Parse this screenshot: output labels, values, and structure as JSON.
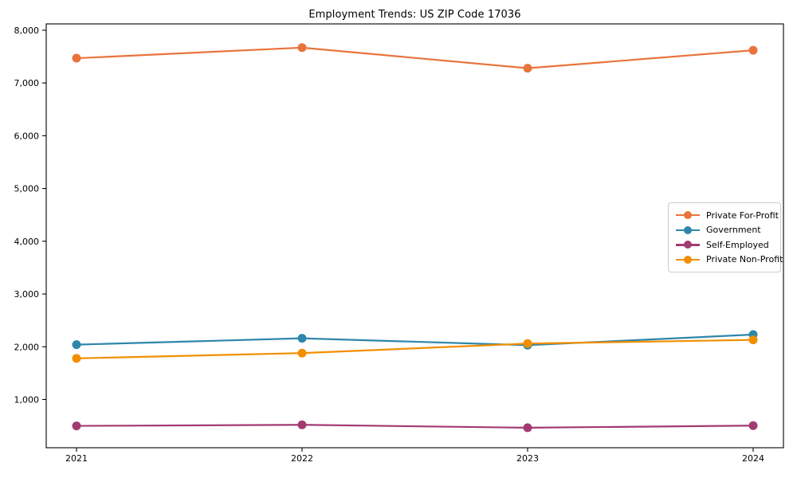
{
  "chart_data": {
    "type": "line",
    "title": "Employment Trends: US ZIP Code 17036",
    "categories": [
      "2021",
      "2022",
      "2023",
      "2024"
    ],
    "series": [
      {
        "name": "Private For-Profit",
        "color": "#E8743B",
        "values": [
          7470,
          7670,
          7280,
          7620
        ]
      },
      {
        "name": "Government",
        "color": "#2E86AB",
        "values": [
          2040,
          2160,
          2030,
          2230
        ]
      },
      {
        "name": "Self-Employed",
        "color": "#A23B72",
        "values": [
          500,
          520,
          465,
          505
        ]
      },
      {
        "name": "Private Non-Profit",
        "color": "#F18F01",
        "values": [
          1780,
          1880,
          2060,
          2130
        ]
      }
    ],
    "xlabel": "",
    "ylabel": "",
    "ylim": [
      86,
      8120
    ],
    "yticks": [
      1000,
      2000,
      3000,
      4000,
      5000,
      6000,
      7000,
      8000
    ],
    "ytick_labels": [
      "1,000",
      "2,000",
      "3,000",
      "4,000",
      "5,000",
      "6,000",
      "7,000",
      "8,000"
    ],
    "grid": false,
    "legend_position": "center right",
    "marker": "circle",
    "axis_color": "#000000",
    "background_color": "#ffffff"
  }
}
